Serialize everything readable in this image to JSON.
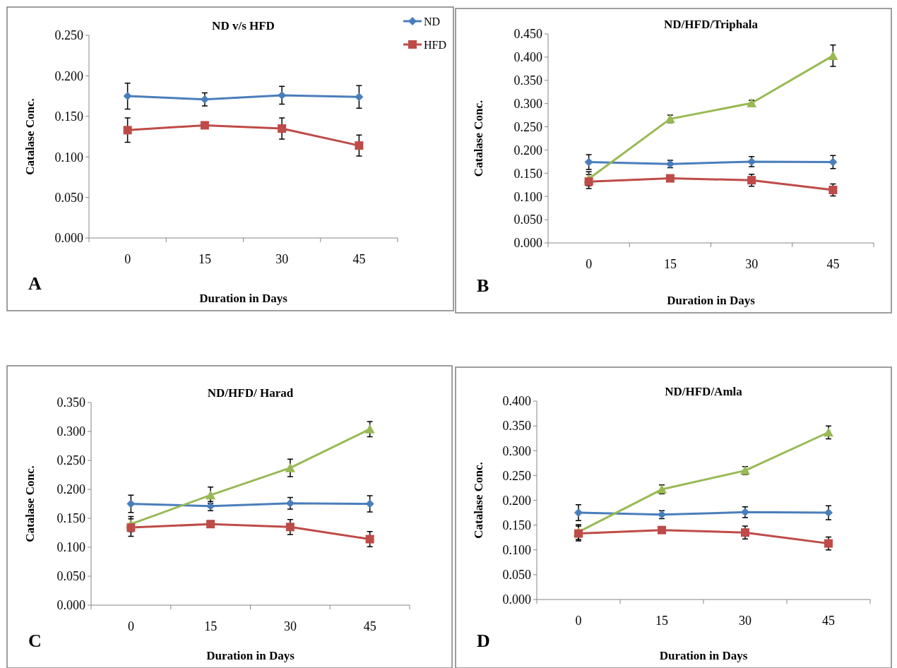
{
  "chart_data": [
    {
      "type": "line",
      "title": "ND v/s HFD",
      "xlabel": "Duration in Days",
      "ylabel": "Catalase Conc.",
      "categories": [
        "0",
        "15",
        "30",
        "45"
      ],
      "ylim": [
        0,
        0.25
      ],
      "yticks": [
        {
          "value": 0,
          "label": "0.000"
        },
        {
          "value": 0.05,
          "label": "0.050"
        },
        {
          "value": 0.1,
          "label": "0.100"
        },
        {
          "value": 0.15,
          "label": "0.150"
        },
        {
          "value": 0.2,
          "label": "0.200"
        },
        {
          "value": 0.25,
          "label": "0.250"
        }
      ],
      "legend": "top right",
      "grid": false,
      "annotations": [
        "A"
      ],
      "series": [
        {
          "name": "ND",
          "color": "#4a7ebb",
          "marker": "diamond",
          "values": [
            0.175,
            0.171,
            0.176,
            0.174
          ],
          "errors": [
            0.016,
            0.008,
            0.011,
            0.014
          ]
        },
        {
          "name": "HFD",
          "color": "#be4b48",
          "marker": "square",
          "values": [
            0.133,
            0.139,
            0.135,
            0.114
          ],
          "errors": [
            0.015,
            null,
            0.013,
            0.013
          ]
        }
      ]
    },
    {
      "type": "line",
      "title": "ND/HFD/Triphala",
      "xlabel": "Duration in Days",
      "ylabel": "Catalase Conc.",
      "categories": [
        "0",
        "15",
        "30",
        "45"
      ],
      "ylim": [
        0,
        0.45
      ],
      "yticks": [
        {
          "value": 0,
          "label": "0.000"
        },
        {
          "value": 0.05,
          "label": "0.050"
        },
        {
          "value": 0.1,
          "label": "0.100"
        },
        {
          "value": 0.15,
          "label": "0.150"
        },
        {
          "value": 0.2,
          "label": "0.200"
        },
        {
          "value": 0.25,
          "label": "0.250"
        },
        {
          "value": 0.3,
          "label": "0.300"
        },
        {
          "value": 0.35,
          "label": "0.350"
        },
        {
          "value": 0.4,
          "label": "0.400"
        },
        {
          "value": 0.45,
          "label": "0.450"
        }
      ],
      "grid": false,
      "annotations": [
        "B"
      ],
      "series": [
        {
          "color": "#4a7ebb",
          "marker": "diamond",
          "values": [
            0.174,
            0.17,
            0.175,
            0.174
          ],
          "errors": [
            0.016,
            0.008,
            0.011,
            0.014
          ]
        },
        {
          "color": "#be4b48",
          "marker": "square",
          "values": [
            0.132,
            0.139,
            0.135,
            0.114
          ],
          "errors": [
            0.015,
            null,
            0.013,
            0.013
          ]
        },
        {
          "color": "#98b954",
          "marker": "triangle",
          "values": [
            0.138,
            0.267,
            0.301,
            0.403
          ],
          "errors": [
            0.015,
            0.008,
            0.006,
            0.023
          ]
        }
      ]
    },
    {
      "type": "line",
      "title": "ND/HFD/ Harad",
      "xlabel": "Duration in Days",
      "ylabel": "Catalase Conc.",
      "categories": [
        "0",
        "15",
        "30",
        "45"
      ],
      "ylim": [
        0,
        0.35
      ],
      "yticks": [
        {
          "value": 0,
          "label": "0.000"
        },
        {
          "value": 0.05,
          "label": "0.050"
        },
        {
          "value": 0.1,
          "label": "0.100"
        },
        {
          "value": 0.15,
          "label": "0.150"
        },
        {
          "value": 0.2,
          "label": "0.200"
        },
        {
          "value": 0.25,
          "label": "0.250"
        },
        {
          "value": 0.3,
          "label": "0.300"
        },
        {
          "value": 0.35,
          "label": "0.350"
        }
      ],
      "grid": false,
      "annotations": [
        "C"
      ],
      "series": [
        {
          "color": "#4a7ebb",
          "marker": "diamond",
          "values": [
            0.175,
            0.171,
            0.176,
            0.175
          ],
          "errors": [
            0.015,
            0.008,
            0.01,
            0.014
          ]
        },
        {
          "color": "#be4b48",
          "marker": "square",
          "values": [
            0.134,
            0.14,
            0.135,
            0.114
          ],
          "errors": [
            0.015,
            null,
            0.013,
            0.013
          ]
        },
        {
          "color": "#98b954",
          "marker": "triangle",
          "values": [
            0.14,
            0.19,
            0.237,
            0.304
          ],
          "errors": [
            0.013,
            0.014,
            0.015,
            0.013
          ]
        }
      ]
    },
    {
      "type": "line",
      "title": "ND/HFD/Amla",
      "xlabel": "Duration in Days",
      "ylabel": "Catalase Conc.",
      "categories": [
        "0",
        "15",
        "30",
        "45"
      ],
      "ylim": [
        0,
        0.4
      ],
      "yticks": [
        {
          "value": 0,
          "label": "0.000"
        },
        {
          "value": 0.05,
          "label": "0.050"
        },
        {
          "value": 0.1,
          "label": "0.100"
        },
        {
          "value": 0.15,
          "label": "0.150"
        },
        {
          "value": 0.2,
          "label": "0.200"
        },
        {
          "value": 0.25,
          "label": "0.250"
        },
        {
          "value": 0.3,
          "label": "0.300"
        },
        {
          "value": 0.35,
          "label": "0.350"
        },
        {
          "value": 0.4,
          "label": "0.400"
        }
      ],
      "grid": false,
      "annotations": [
        "D"
      ],
      "series": [
        {
          "color": "#4a7ebb",
          "marker": "diamond",
          "values": [
            0.175,
            0.171,
            0.176,
            0.175
          ],
          "errors": [
            0.016,
            0.008,
            0.011,
            0.014
          ]
        },
        {
          "color": "#be4b48",
          "marker": "square",
          "values": [
            0.133,
            0.14,
            0.135,
            0.113
          ],
          "errors": [
            0.015,
            null,
            0.013,
            0.013
          ]
        },
        {
          "color": "#98b954",
          "marker": "triangle",
          "values": [
            0.136,
            0.222,
            0.26,
            0.337
          ],
          "errors": [
            0.015,
            0.009,
            0.008,
            0.013
          ]
        }
      ]
    }
  ]
}
